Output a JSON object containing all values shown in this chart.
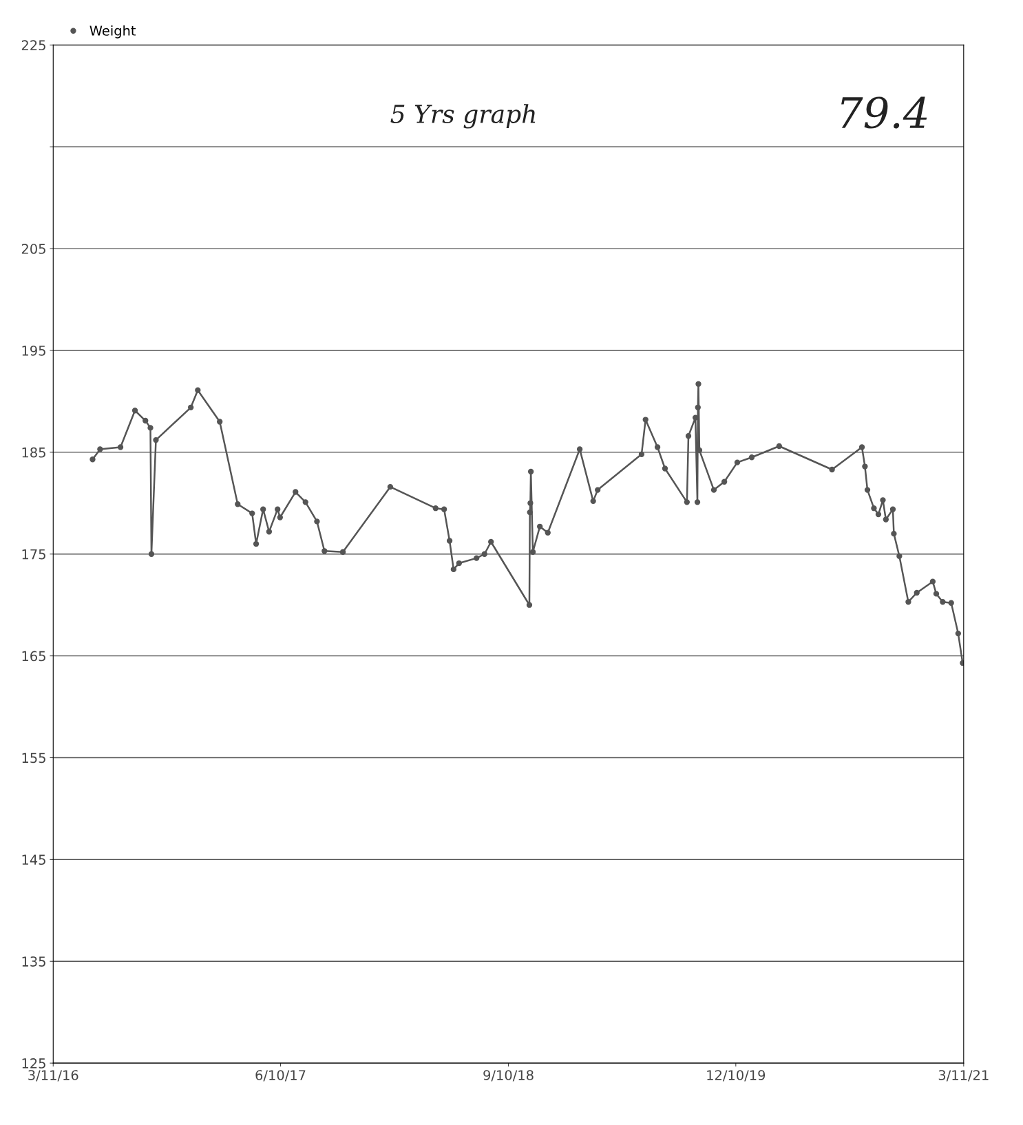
{
  "chart_data": {
    "type": "line",
    "title": null,
    "legend": "top left",
    "grid": "y",
    "marker": "circle",
    "line_style": "solid",
    "x": [
      "2016-05-29",
      "2016-06-13",
      "2016-07-24",
      "2016-08-22",
      "2016-09-12",
      "2016-09-22",
      "2016-09-24",
      "2016-10-03",
      "2016-12-12",
      "2016-12-26",
      "2017-02-08",
      "2017-03-16",
      "2017-04-14",
      "2017-04-22",
      "2017-05-06",
      "2017-05-18",
      "2017-06-04",
      "2017-06-09",
      "2017-07-10",
      "2017-07-30",
      "2017-08-22",
      "2017-09-06",
      "2017-10-13",
      "2018-01-16",
      "2018-04-17",
      "2018-05-04",
      "2018-05-15",
      "2018-05-23",
      "2018-06-03",
      "2018-07-08",
      "2018-07-24",
      "2018-08-06",
      "2018-10-22",
      "2018-10-23",
      "2018-10-24",
      "2018-10-25",
      "2018-10-29",
      "2018-11-12",
      "2018-11-28",
      "2019-01-31",
      "2019-02-27",
      "2019-03-08",
      "2019-06-04",
      "2019-06-12",
      "2019-07-06",
      "2019-07-21",
      "2019-09-03",
      "2019-09-06",
      "2019-09-20",
      "2019-09-24",
      "2019-09-25",
      "2019-09-26",
      "2019-09-28",
      "2019-10-27",
      "2019-11-17",
      "2019-12-13",
      "2020-01-11",
      "2020-03-06",
      "2020-06-20",
      "2020-08-19",
      "2020-08-25",
      "2020-08-30",
      "2020-09-12",
      "2020-09-21",
      "2020-09-30",
      "2020-10-06",
      "2020-10-20",
      "2020-10-22",
      "2020-11-02",
      "2020-11-20",
      "2020-12-07",
      "2021-01-08",
      "2021-01-15",
      "2021-01-28",
      "2021-02-14",
      "2021-02-28",
      "2021-03-09"
    ],
    "series": [
      {
        "name": "Weight",
        "color": "#555555",
        "values": [
          184.3,
          185.3,
          185.5,
          189.1,
          188.1,
          187.4,
          175.0,
          186.2,
          189.4,
          191.1,
          188.0,
          179.9,
          179.0,
          176.0,
          179.4,
          177.2,
          179.4,
          178.6,
          181.1,
          180.1,
          178.2,
          175.3,
          175.2,
          181.6,
          179.5,
          179.4,
          176.3,
          173.5,
          174.1,
          174.6,
          175.0,
          176.2,
          170.0,
          179.1,
          180.0,
          183.1,
          175.2,
          177.7,
          177.1,
          185.3,
          180.2,
          181.3,
          184.8,
          188.2,
          185.5,
          183.4,
          180.1,
          186.6,
          188.4,
          180.1,
          189.4,
          191.7,
          185.2,
          181.3,
          182.1,
          184.0,
          184.5,
          185.6,
          183.3,
          185.5,
          183.6,
          181.3,
          179.5,
          178.9,
          180.3,
          178.4,
          179.4,
          177.0,
          174.8,
          170.3,
          171.2,
          172.3,
          171.1,
          170.3,
          170.2,
          167.2,
          164.3
        ]
      }
    ],
    "xlim": [
      "2016-03-11",
      "2021-03-11"
    ],
    "xticks": [
      {
        "value": "2016-03-11",
        "label": "3/11/16"
      },
      {
        "value": "2017-06-10",
        "label": "6/10/17"
      },
      {
        "value": "2018-09-10",
        "label": "9/10/18"
      },
      {
        "value": "2019-12-10",
        "label": "12/10/19"
      },
      {
        "value": "2021-03-11",
        "label": "3/11/21"
      }
    ],
    "ylim": [
      125,
      225
    ],
    "yticks": [
      125,
      135,
      145,
      155,
      165,
      175,
      185,
      195,
      205,
      {
        "value": 215,
        "label": null
      },
      225
    ],
    "annotations": [
      "5 Yrs graph",
      "79.4"
    ]
  }
}
